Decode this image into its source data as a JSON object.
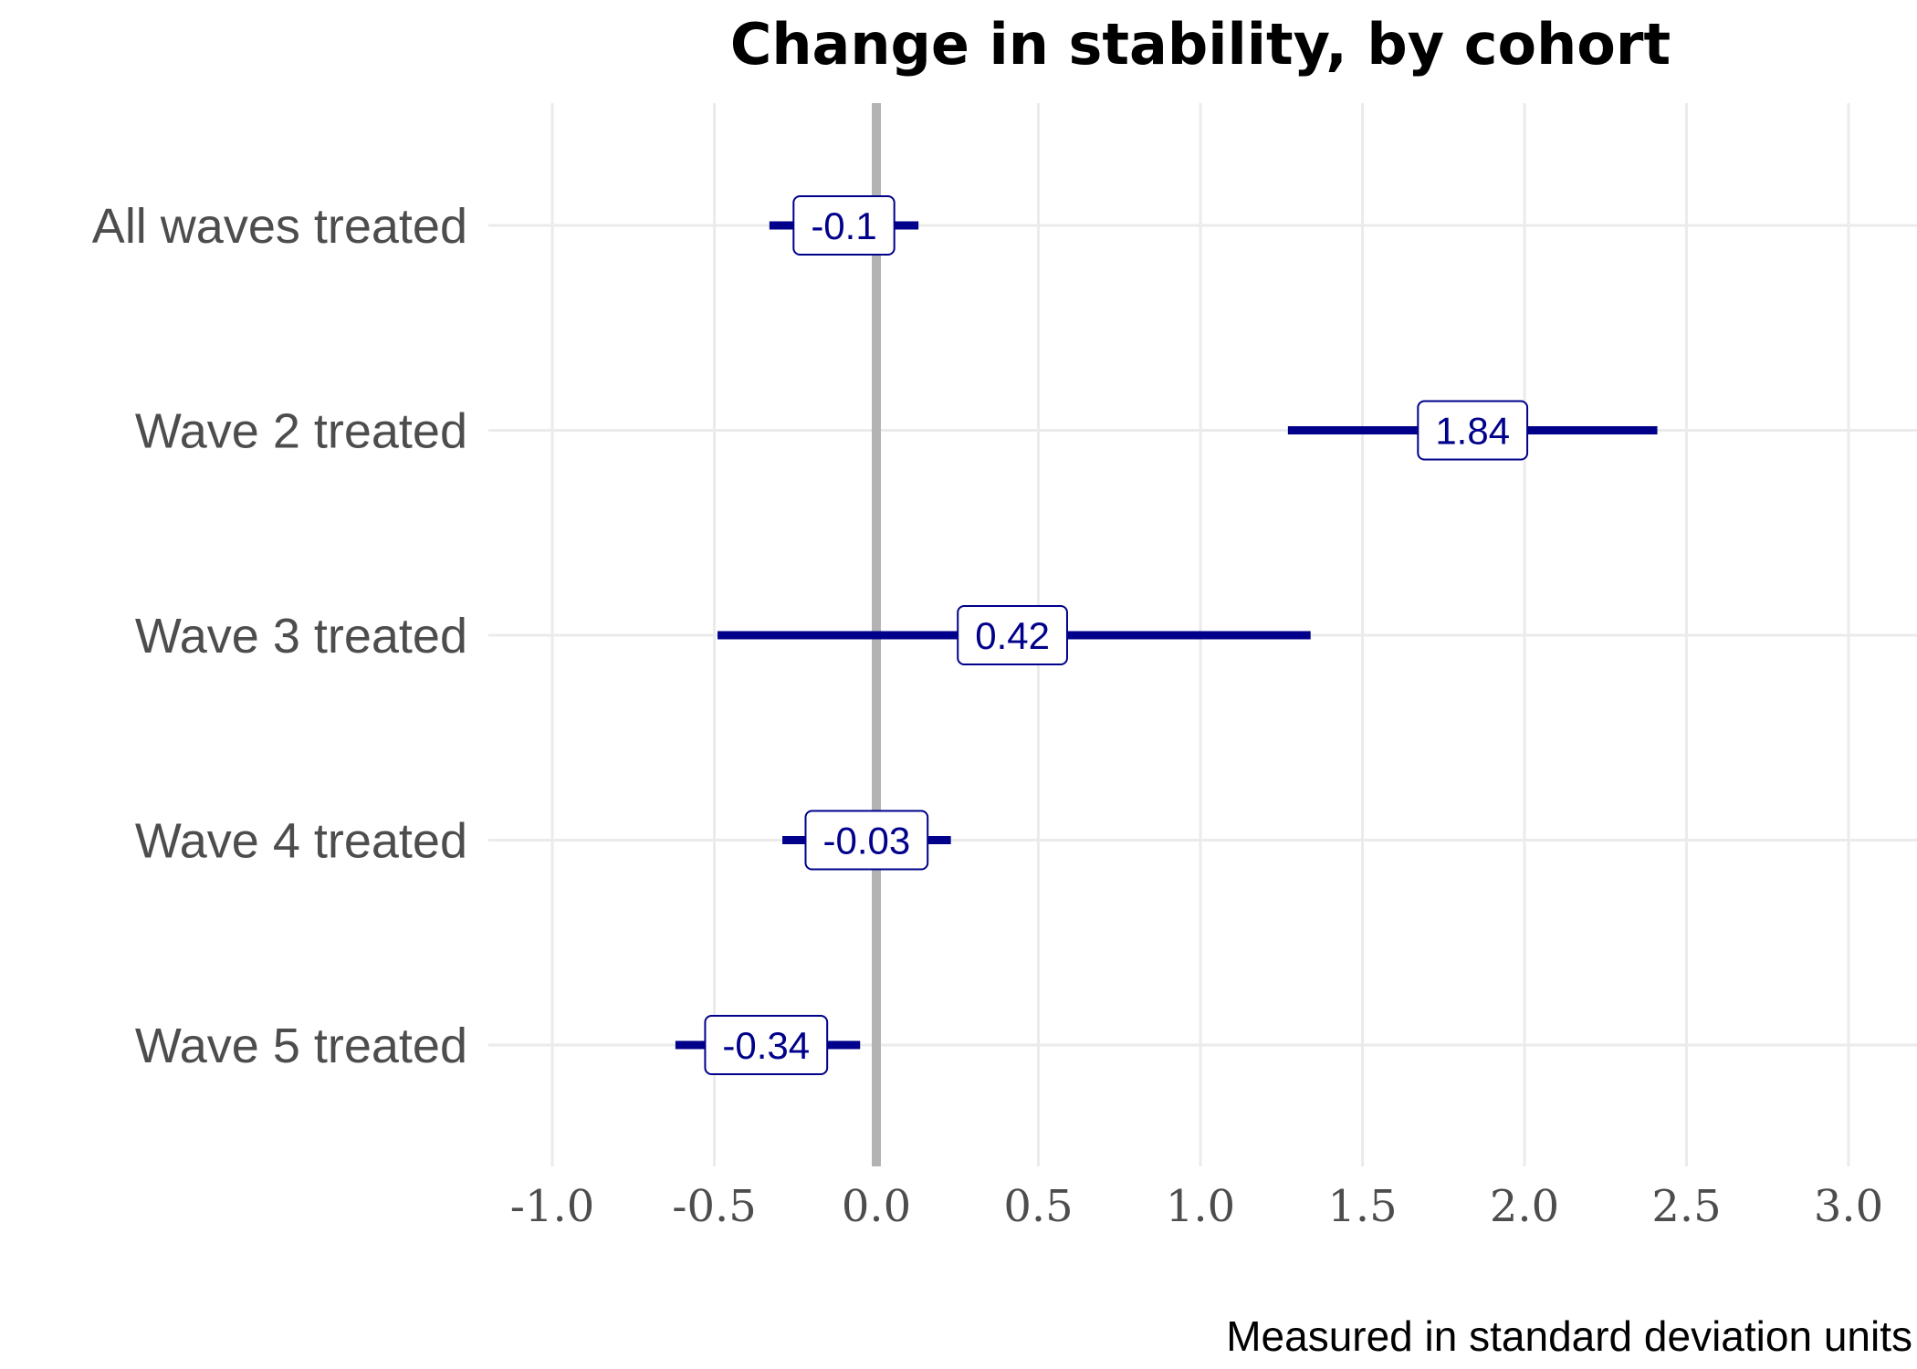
{
  "chart_data": {
    "type": "forest",
    "title": "Change in stability, by cohort",
    "caption": "Measured in standard deviation units",
    "xlim": [
      -1.2,
      3.2
    ],
    "x_ticks": [
      -1.0,
      -0.5,
      0.0,
      0.5,
      1.0,
      1.5,
      2.0,
      2.5,
      3.0
    ],
    "x_tick_labels": [
      "-1.0",
      "-0.5",
      "0.0",
      "0.5",
      "1.0",
      "1.5",
      "2.0",
      "2.5",
      "3.0"
    ],
    "reference_line": 0.0,
    "grid": true,
    "color": "#00008b",
    "reference_color": "#b3b3b3",
    "points": [
      {
        "category": "All waves treated",
        "estimate": -0.1,
        "label": "-0.1",
        "ci_low": -0.33,
        "ci_high": 0.13
      },
      {
        "category": "Wave 2 treated",
        "estimate": 1.84,
        "label": "1.84",
        "ci_low": 1.27,
        "ci_high": 2.41
      },
      {
        "category": "Wave 3 treated",
        "estimate": 0.42,
        "label": "0.42",
        "ci_low": -0.49,
        "ci_high": 1.34
      },
      {
        "category": "Wave 4 treated",
        "estimate": -0.03,
        "label": "-0.03",
        "ci_low": -0.29,
        "ci_high": 0.23
      },
      {
        "category": "Wave 5 treated",
        "estimate": -0.34,
        "label": "-0.34",
        "ci_low": -0.62,
        "ci_high": -0.05
      }
    ]
  }
}
